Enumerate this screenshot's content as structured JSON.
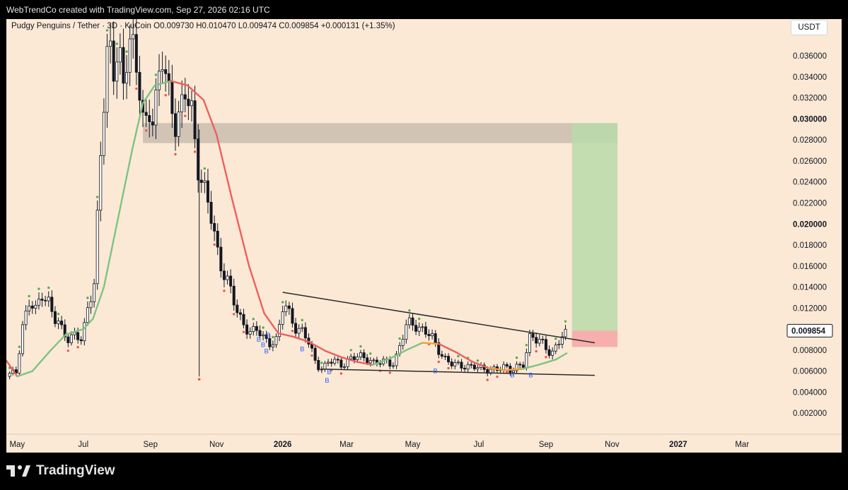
{
  "header": {
    "attribution": "WebTrendCo created with TradingView.com, Sep 27, 2026 02:16 UTC"
  },
  "symbol": {
    "info": "Pudgy Penguins / Tether · 3D · KuCoin   O0.009730  H0.010470  L0.009474  C0.009854  +0.000131 (+1.35%)"
  },
  "currency_label": "USDT",
  "footer": {
    "brand": "TradingView"
  },
  "colors": {
    "background": "#fbe9d5",
    "candle_body": "#131722",
    "ma_up": "#7dc383",
    "ma_down": "#ef5e5e",
    "ma_flat": "#f0a23a",
    "signal_up": "#4caf50",
    "signal_down": "#ef5350",
    "buy_label": "#2962ff",
    "zone_gray": "#bfb3a6",
    "target_green": "#b8dba9",
    "stop_red": "#f4a5a5",
    "trendline": "#2a2a2a"
  },
  "chart_data": {
    "type": "candlestick",
    "title": "Pudgy Penguins / Tether · 3D · KuCoin",
    "ohlc_last": {
      "open": 0.00973,
      "high": 0.01047,
      "low": 0.009474,
      "close": 0.009854,
      "change": 0.000131,
      "change_pct": 1.35
    },
    "last_price_label": "0.009854",
    "y_axis": {
      "ticks": [
        0.002,
        0.004,
        0.006,
        0.008,
        0.01,
        0.012,
        0.014,
        0.016,
        0.018,
        0.02,
        0.022,
        0.024,
        0.026,
        0.028,
        0.03,
        0.032,
        0.034,
        0.036
      ],
      "tick_labels": [
        "0.002000",
        "0.004000",
        "0.006000",
        "0.008000",
        "0.010000",
        "0.012000",
        "0.014000",
        "0.016000",
        "0.018000",
        "0.020000",
        "0.022000",
        "0.024000",
        "0.026000",
        "0.028000",
        "0.030000",
        "0.032000",
        "0.034000",
        "0.036000"
      ],
      "bold_ticks": [
        "0.020000",
        "0.030000"
      ],
      "range": [
        0.0,
        0.0395
      ]
    },
    "x_axis": {
      "range": [
        "2025-04-21",
        "2027-04-09"
      ],
      "ticks": [
        {
          "date": "2025-05-01",
          "label": "May",
          "bold": false
        },
        {
          "date": "2025-07-01",
          "label": "Jul",
          "bold": false
        },
        {
          "date": "2025-09-01",
          "label": "Sep",
          "bold": false
        },
        {
          "date": "2025-11-01",
          "label": "Nov",
          "bold": false
        },
        {
          "date": "2026-01-01",
          "label": "2026",
          "bold": true
        },
        {
          "date": "2026-03-01",
          "label": "Mar",
          "bold": false
        },
        {
          "date": "2026-05-01",
          "label": "May",
          "bold": false
        },
        {
          "date": "2026-07-01",
          "label": "Jul",
          "bold": false
        },
        {
          "date": "2026-09-01",
          "label": "Sep",
          "bold": false
        },
        {
          "date": "2026-11-01",
          "label": "Nov",
          "bold": false
        },
        {
          "date": "2027-01-01",
          "label": "2027",
          "bold": true
        },
        {
          "date": "2027-03-01",
          "label": "Mar",
          "bold": false
        }
      ]
    },
    "price_path": [
      [
        "2025-04-21",
        0.0055
      ],
      [
        "2025-04-30",
        0.0059
      ],
      [
        "2025-05-06",
        0.0105
      ],
      [
        "2025-05-12",
        0.0125
      ],
      [
        "2025-05-18",
        0.0115
      ],
      [
        "2025-05-24",
        0.0135
      ],
      [
        "2025-05-30",
        0.0128
      ],
      [
        "2025-06-05",
        0.0108
      ],
      [
        "2025-06-11",
        0.0098
      ],
      [
        "2025-06-17",
        0.0092
      ],
      [
        "2025-06-24",
        0.0097
      ],
      [
        "2025-06-30",
        0.0086
      ],
      [
        "2025-07-06",
        0.0125
      ],
      [
        "2025-07-12",
        0.015
      ],
      [
        "2025-07-15",
        0.024
      ],
      [
        "2025-07-18",
        0.029
      ],
      [
        "2025-07-24",
        0.036
      ],
      [
        "2025-07-30",
        0.0345
      ],
      [
        "2025-08-02",
        0.038
      ],
      [
        "2025-08-08",
        0.033
      ],
      [
        "2025-08-11",
        0.0375
      ],
      [
        "2025-08-17",
        0.035
      ],
      [
        "2025-08-23",
        0.033
      ],
      [
        "2025-08-26",
        0.0295
      ],
      [
        "2025-09-01",
        0.0315
      ],
      [
        "2025-09-04",
        0.029
      ],
      [
        "2025-09-10",
        0.034
      ],
      [
        "2025-09-13",
        0.037
      ],
      [
        "2025-09-16",
        0.034
      ],
      [
        "2025-09-22",
        0.031
      ],
      [
        "2025-09-25",
        0.029
      ],
      [
        "2025-10-01",
        0.0305
      ],
      [
        "2025-10-04",
        0.033
      ],
      [
        "2025-10-10",
        0.031
      ],
      [
        "2025-10-13",
        0.027
      ],
      [
        "2025-10-16",
        0.025
      ],
      [
        "2025-10-22",
        0.022
      ],
      [
        "2025-10-28",
        0.0205
      ],
      [
        "2025-11-03",
        0.017
      ],
      [
        "2025-11-09",
        0.015
      ],
      [
        "2025-11-15",
        0.013
      ],
      [
        "2025-11-21",
        0.0115
      ],
      [
        "2025-11-27",
        0.0105
      ],
      [
        "2025-12-03",
        0.0095
      ],
      [
        "2025-12-09",
        0.0098
      ],
      [
        "2025-12-15",
        0.0092
      ],
      [
        "2025-12-21",
        0.0088
      ],
      [
        "2025-12-27",
        0.0088
      ],
      [
        "2026-01-02",
        0.0125
      ],
      [
        "2026-01-08",
        0.0115
      ],
      [
        "2026-01-14",
        0.01
      ],
      [
        "2026-01-20",
        0.0095
      ],
      [
        "2026-01-26",
        0.0085
      ],
      [
        "2026-02-01",
        0.0068
      ],
      [
        "2026-02-07",
        0.0062
      ],
      [
        "2026-02-13",
        0.0068
      ],
      [
        "2026-02-19",
        0.007
      ],
      [
        "2026-02-25",
        0.0067
      ],
      [
        "2026-03-03",
        0.007
      ],
      [
        "2026-03-09",
        0.0072
      ],
      [
        "2026-03-15",
        0.0075
      ],
      [
        "2026-03-21",
        0.0073
      ],
      [
        "2026-03-27",
        0.0066
      ],
      [
        "2026-04-02",
        0.0068
      ],
      [
        "2026-04-08",
        0.007
      ],
      [
        "2026-04-14",
        0.0068
      ],
      [
        "2026-04-20",
        0.0085
      ],
      [
        "2026-04-26",
        0.0105
      ],
      [
        "2026-05-02",
        0.0108
      ],
      [
        "2026-05-08",
        0.01
      ],
      [
        "2026-05-14",
        0.0095
      ],
      [
        "2026-05-20",
        0.009
      ],
      [
        "2026-05-26",
        0.008
      ],
      [
        "2026-06-01",
        0.007
      ],
      [
        "2026-06-07",
        0.0065
      ],
      [
        "2026-06-13",
        0.0066
      ],
      [
        "2026-06-19",
        0.0066
      ],
      [
        "2026-06-25",
        0.0064
      ],
      [
        "2026-07-01",
        0.0062
      ],
      [
        "2026-07-07",
        0.0062
      ],
      [
        "2026-07-13",
        0.0063
      ],
      [
        "2026-07-19",
        0.0061
      ],
      [
        "2026-07-25",
        0.0063
      ],
      [
        "2026-07-31",
        0.0062
      ],
      [
        "2026-08-06",
        0.0066
      ],
      [
        "2026-08-12",
        0.0065
      ],
      [
        "2026-08-18",
        0.0095
      ],
      [
        "2026-08-24",
        0.0092
      ],
      [
        "2026-08-30",
        0.0088
      ],
      [
        "2026-09-02",
        0.008
      ],
      [
        "2026-09-05",
        0.0072
      ],
      [
        "2026-09-08",
        0.0075
      ],
      [
        "2026-09-11",
        0.0087
      ],
      [
        "2026-09-14",
        0.0093
      ],
      [
        "2026-09-17",
        0.0097
      ],
      [
        "2026-09-20",
        0.00985
      ]
    ],
    "wick_spike": {
      "date": "2025-10-16",
      "low": 0.0055
    },
    "moving_average": [
      [
        "2025-04-21",
        0.007
      ],
      [
        "2025-05-01",
        0.0055
      ],
      [
        "2025-05-15",
        0.006
      ],
      [
        "2025-06-01",
        0.008
      ],
      [
        "2025-06-15",
        0.0095
      ],
      [
        "2025-07-01",
        0.01
      ],
      [
        "2025-07-10",
        0.011
      ],
      [
        "2025-07-20",
        0.014
      ],
      [
        "2025-08-01",
        0.02
      ],
      [
        "2025-08-15",
        0.027
      ],
      [
        "2025-08-25",
        0.0315
      ],
      [
        "2025-09-05",
        0.0332
      ],
      [
        "2025-09-20",
        0.0336
      ],
      [
        "2025-10-05",
        0.0332
      ],
      [
        "2025-10-20",
        0.0318
      ],
      [
        "2025-11-01",
        0.0285
      ],
      [
        "2025-11-15",
        0.0225
      ],
      [
        "2025-12-01",
        0.016
      ],
      [
        "2025-12-15",
        0.0115
      ],
      [
        "2025-12-28",
        0.0096
      ],
      [
        "2026-01-10",
        0.0093
      ],
      [
        "2026-01-25",
        0.0088
      ],
      [
        "2026-02-10",
        0.0079
      ],
      [
        "2026-02-25",
        0.0073
      ],
      [
        "2026-03-10",
        0.0069
      ],
      [
        "2026-03-25",
        0.0066
      ],
      [
        "2026-04-10",
        0.0072
      ],
      [
        "2026-04-25",
        0.008
      ],
      [
        "2026-05-10",
        0.0087
      ],
      [
        "2026-05-25",
        0.0086
      ],
      [
        "2026-06-10",
        0.0078
      ],
      [
        "2026-06-25",
        0.0069
      ],
      [
        "2026-07-10",
        0.0063
      ],
      [
        "2026-07-25",
        0.0061
      ],
      [
        "2026-08-10",
        0.0062
      ],
      [
        "2026-08-25",
        0.0066
      ],
      [
        "2026-09-10",
        0.0071
      ],
      [
        "2026-09-20",
        0.0077
      ]
    ],
    "trendlines": [
      {
        "from": [
          "2026-01-01",
          0.0135
        ],
        "to": [
          "2026-10-16",
          0.0087
        ]
      },
      {
        "from": [
          "2026-02-05",
          0.0062
        ],
        "to": [
          "2026-10-16",
          0.0056
        ]
      }
    ],
    "zones": [
      {
        "kind": "resistance",
        "from": "2025-08-25",
        "to": "2026-11-06",
        "low": 0.0277,
        "high": 0.0296
      },
      {
        "kind": "target",
        "from": "2026-09-25",
        "to": "2026-11-06",
        "low": 0.00985,
        "high": 0.0296
      },
      {
        "kind": "stop",
        "from": "2026-09-25",
        "to": "2026-11-06",
        "low": 0.0083,
        "high": 0.00985
      }
    ],
    "buy_labels": [
      {
        "date": "2025-12-10",
        "price": 0.0088,
        "text": "B"
      },
      {
        "date": "2025-12-14",
        "price": 0.0083,
        "text": "B"
      },
      {
        "date": "2025-12-19",
        "price": 0.0092,
        "text": "B"
      },
      {
        "date": "2025-12-17",
        "price": 0.0077,
        "text": "B"
      },
      {
        "date": "2026-01-19",
        "price": 0.0079,
        "text": "B"
      },
      {
        "date": "2026-02-13",
        "price": 0.0057,
        "text": "B"
      },
      {
        "date": "2026-02-11",
        "price": 0.0049,
        "text": "B"
      },
      {
        "date": "2026-05-22",
        "price": 0.0058,
        "text": "B"
      },
      {
        "date": "2026-08-01",
        "price": 0.0054,
        "text": "B"
      },
      {
        "date": "2026-08-18",
        "price": 0.0054,
        "text": "B"
      }
    ]
  }
}
